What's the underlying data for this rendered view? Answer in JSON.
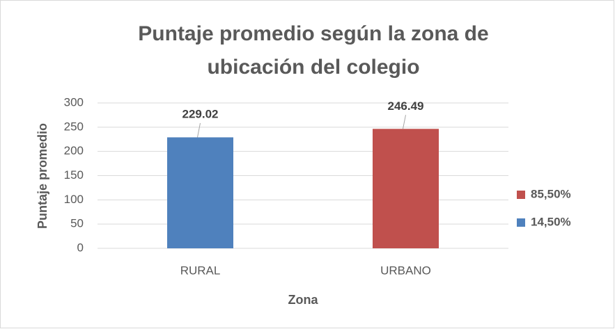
{
  "chart_data": {
    "type": "bar",
    "title": [
      "Puntaje promedio según la zona de",
      "ubicación del colegio"
    ],
    "x_label": "Zona",
    "y_label": "Puntaje promedio",
    "categories": [
      "RURAL",
      "URBANO"
    ],
    "series": [
      {
        "name": "14,50%",
        "color": "#4f81bd",
        "values": [
          229.02,
          null
        ]
      },
      {
        "name": "85,50%",
        "color": "#c0504d",
        "values": [
          null,
          246.49
        ]
      }
    ],
    "ylim": [
      0,
      300
    ],
    "yticks": [
      0,
      50,
      100,
      150,
      200,
      250,
      300
    ],
    "grid": true,
    "legend": "right"
  }
}
